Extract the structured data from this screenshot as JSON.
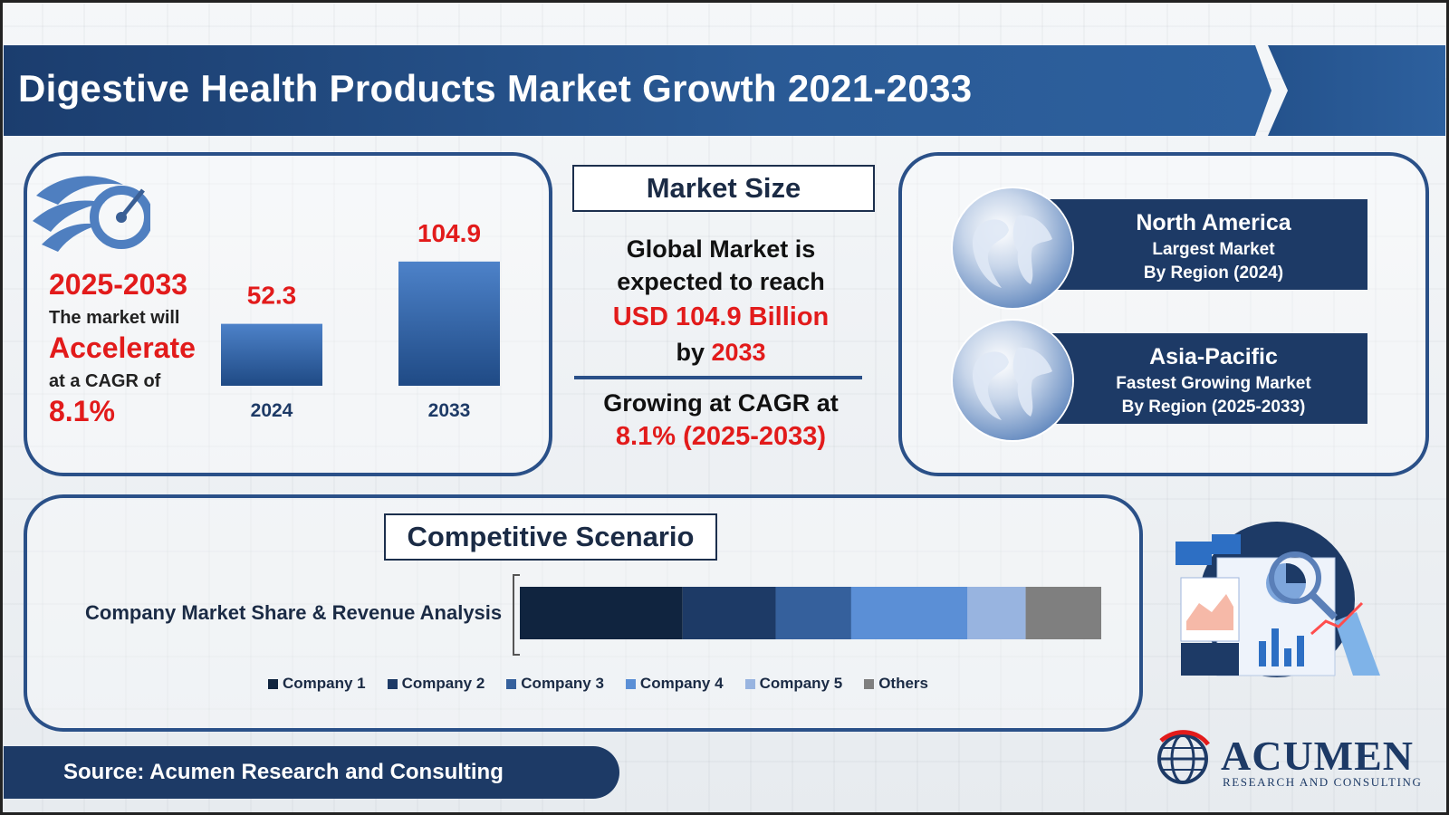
{
  "title": "Digestive Health Products Market Growth 2021-2033",
  "left_panel": {
    "years": "2025-2033",
    "will": "The market will",
    "accelerate": "Accelerate",
    "cagr_of": "at a CAGR of",
    "cagr": "8.1%"
  },
  "chart_data": {
    "type": "bar",
    "categories": [
      "2024",
      "2033"
    ],
    "values": [
      52.3,
      104.9
    ],
    "value_labels": [
      "52.3",
      "104.9"
    ],
    "title": "",
    "xlabel": "",
    "ylabel": "",
    "ylim": [
      0,
      130
    ],
    "grid": false
  },
  "market_size": {
    "heading": "Market Size",
    "line1": "Global Market is",
    "line2": "expected to reach",
    "line3": "USD 104.9 Billion",
    "line4_prefix": "by ",
    "line4_year": "2033",
    "line5": "Growing at CAGR at",
    "line6": "8.1% (2025-2033)"
  },
  "regions": [
    {
      "name": "North America",
      "sub": "Largest Market",
      "period": "By Region (2024)"
    },
    {
      "name": "Asia-Pacific",
      "sub": "Fastest Growing Market",
      "period": "By Region (2025-2033)"
    }
  ],
  "competitive": {
    "heading": "Competitive Scenario",
    "label": "Company Market Share & Revenue Analysis",
    "segments": [
      {
        "name": "Company 1",
        "share": 28,
        "color": "#10243f"
      },
      {
        "name": "Company 2",
        "share": 16,
        "color": "#1d3a66"
      },
      {
        "name": "Company 3",
        "share": 13,
        "color": "#35609c"
      },
      {
        "name": "Company 4",
        "share": 20,
        "color": "#5b8fd6"
      },
      {
        "name": "Company 5",
        "share": 10,
        "color": "#98b4e0"
      },
      {
        "name": "Others",
        "share": 13,
        "color": "#7f7f7f"
      }
    ]
  },
  "footer": {
    "source": "Source: Acumen Research and Consulting",
    "logo_name": "ACUMEN",
    "logo_sub": "RESEARCH AND CONSULTING"
  },
  "colors": {
    "brand_blue": "#1d3a66",
    "accent_red": "#e21b1b"
  }
}
